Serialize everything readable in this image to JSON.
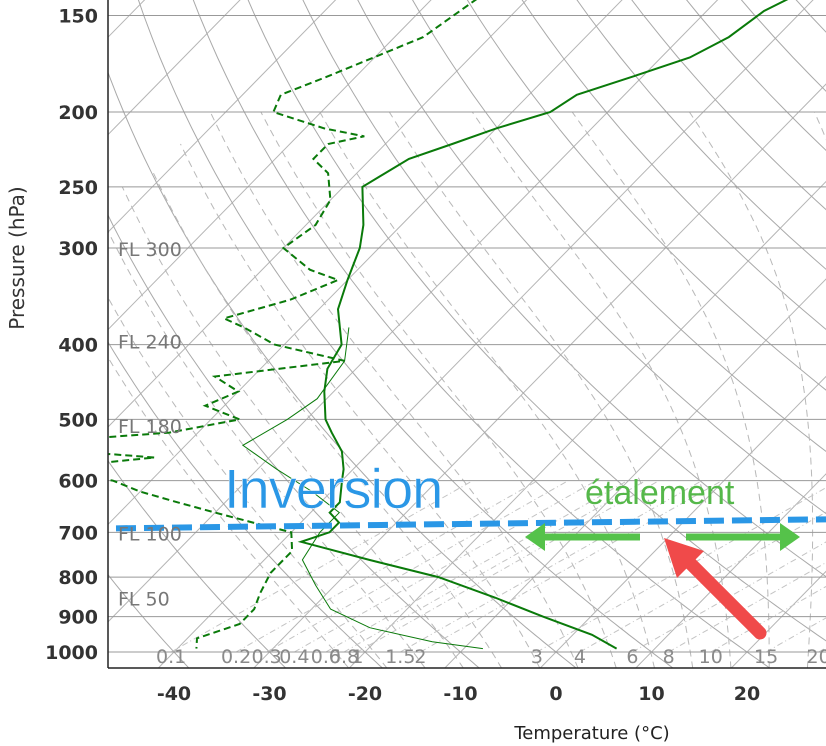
{
  "chart_data": {
    "type": "line",
    "chart_kind": "skew-T log-P sounding",
    "xlabel": "Temperature (°C)",
    "ylabel": "Pressure (hPa)",
    "xlim": [
      -48,
      28
    ],
    "ylim": [
      1050,
      140
    ],
    "y_scale": "log",
    "grid": true,
    "x_ticks": [
      -40,
      -30,
      -20,
      -10,
      0,
      10,
      20
    ],
    "x_tick_labels": [
      "-40",
      "-30",
      "-20",
      "-10",
      "0",
      "10",
      "20"
    ],
    "y_ticks": [
      150,
      200,
      250,
      300,
      400,
      500,
      600,
      700,
      800,
      900,
      1000
    ],
    "y_tick_labels": [
      "150",
      "200",
      "250",
      "300",
      "400",
      "500",
      "600",
      "700",
      "800",
      "900",
      "1000"
    ],
    "flight_levels": [
      {
        "label": "FL 300",
        "p": 300
      },
      {
        "label": "FL 240",
        "p": 395
      },
      {
        "label": "FL 180",
        "p": 508
      },
      {
        "label": "FL 100",
        "p": 700
      },
      {
        "label": "FL 50",
        "p": 850
      }
    ],
    "mixing_ratio_labels": [
      "0.1",
      "0.2",
      "0.3",
      "0.4",
      "0.6",
      "0.8",
      "1",
      "1.5",
      "2",
      "3",
      "4",
      "6",
      "8",
      "10",
      "15",
      "20"
    ],
    "mixing_ratio_label_x": [
      -40.3,
      -33.5,
      -30.3,
      -27.4,
      -24.1,
      -22.2,
      -20.8,
      -16.3,
      -14.2,
      -2.0,
      2.5,
      8.0,
      11.8,
      16.2,
      22.0,
      27.5
    ],
    "series": [
      {
        "style": "solid",
        "p": [
          140,
          148,
          160,
          170,
          180,
          190,
          200,
          210,
          220,
          230,
          250,
          280,
          300,
          330,
          360,
          400,
          430,
          460,
          500,
          520,
          550,
          580,
          600,
          640,
          660,
          680,
          700,
          720,
          760,
          800,
          850,
          900,
          950,
          990
        ],
        "t": [
          -42,
          -44,
          -45,
          -47,
          -51,
          -55,
          -56,
          -60,
          -63,
          -66,
          -68,
          -64,
          -62,
          -60,
          -58,
          -54,
          -53,
          -51,
          -48,
          -46,
          -43,
          -41,
          -40,
          -38,
          -38,
          -36,
          -36,
          -38,
          -29,
          -20,
          -12,
          -5,
          2,
          6
        ]
      },
      {
        "style": "dashed",
        "p": [
          140,
          160,
          180,
          190,
          200,
          210,
          215,
          220,
          230,
          240,
          260,
          280,
          300,
          320,
          330,
          350,
          370,
          380,
          400,
          420,
          440,
          460,
          480,
          500,
          520,
          540,
          560,
          580,
          600,
          620,
          640,
          660,
          680,
          700,
          740,
          790,
          840,
          880,
          920,
          960,
          990
        ],
        "t": [
          -75,
          -77,
          -83,
          -86,
          -85,
          -78,
          -73,
          -76,
          -76,
          -73,
          -70,
          -69,
          -70,
          -65,
          -61,
          -64,
          -69,
          -66,
          -61,
          -52,
          -64,
          -60,
          -62,
          -57,
          -63,
          -80,
          -62,
          -73,
          -64,
          -60,
          -55,
          -50,
          -45,
          -40,
          -38,
          -38,
          -37,
          -36,
          -36,
          -39,
          -38
        ]
      },
      {
        "style": "thin",
        "p": [
          380,
          420,
          470,
          500,
          540,
          580,
          620,
          660,
          700,
          760,
          820,
          880,
          930,
          970,
          990
        ],
        "t": [
          -55,
          -52,
          -51,
          -52,
          -54,
          -48,
          -42,
          -37,
          -37,
          -36,
          -32,
          -28,
          -22,
          -14,
          -8
        ]
      }
    ],
    "annotations": [
      {
        "text": "Inversion",
        "p": 688,
        "x_at": -33
      },
      {
        "text": "étalement",
        "p": 695,
        "x_at": -4
      }
    ],
    "colors": {
      "sounding": "#0a7a0a",
      "inversion_line": "#2a97e6",
      "arrows": "#55c24a",
      "pointer": "#f04a4a"
    }
  }
}
